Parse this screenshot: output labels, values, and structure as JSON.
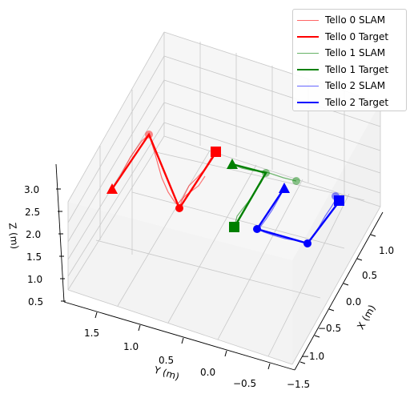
{
  "chart_data": {
    "type": "line",
    "projection": "3d",
    "xlabel": "X (m)",
    "ylabel": "Y (m)",
    "zlabel": "Z (m)",
    "x_ticks": [
      "1.0",
      "0.5",
      "0.0",
      "−0.5",
      "−1.0",
      "−1.5"
    ],
    "y_ticks": [
      "1.5",
      "1.0",
      "0.5",
      "0.0",
      "−0.5"
    ],
    "z_ticks": [
      "3.0",
      "2.5",
      "2.0",
      "1.5",
      "1.0",
      "0.5"
    ],
    "legend_position": "top-right",
    "series": [
      {
        "name": "Tello 0 SLAM",
        "color": "#ff0000",
        "style": "thin"
      },
      {
        "name": "Tello 0 Target",
        "color": "#ff0000",
        "style": "thick"
      },
      {
        "name": "Tello 1 SLAM",
        "color": "#008000",
        "style": "thin"
      },
      {
        "name": "Tello 1 Target",
        "color": "#008000",
        "style": "thick"
      },
      {
        "name": "Tello 2 SLAM",
        "color": "#0000ff",
        "style": "thin"
      },
      {
        "name": "Tello 2 Target",
        "color": "#0000ff",
        "style": "thick"
      }
    ]
  }
}
